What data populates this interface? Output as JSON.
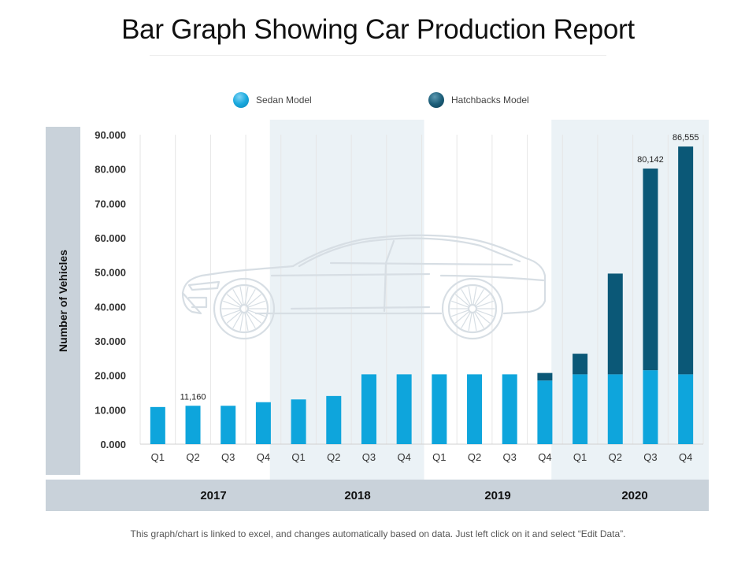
{
  "page": {
    "title": "Bar Graph Showing Car Production Report",
    "footnote": "This graph/chart is linked to excel, and changes automatically based on data. Just left click on it and select “Edit Data”."
  },
  "colors": {
    "sedan": "#0ea5dc",
    "hatchback": "#0b5877",
    "year_shade": "#ebf2f6",
    "band": "#c9d2da",
    "gridline": "#e6e6e6",
    "tick_text": "#333333"
  },
  "chart_data": {
    "type": "bar",
    "stacked": true,
    "title": "Bar Graph Showing Car Production Report",
    "xlabel": "",
    "ylabel": "Number of Vehicles",
    "ylim": [
      0,
      90000
    ],
    "yticks": [
      0,
      10000,
      20000,
      30000,
      40000,
      50000,
      60000,
      70000,
      80000,
      90000
    ],
    "ytick_labels": [
      "0.000",
      "10.000",
      "20.000",
      "30.000",
      "40.000",
      "50.000",
      "60.000",
      "70.000",
      "80.000",
      "90.000"
    ],
    "grid": "vertical",
    "legend_position": "top-center",
    "years": [
      "2017",
      "2018",
      "2019",
      "2020"
    ],
    "shaded_years": [
      "2018",
      "2020"
    ],
    "categories": [
      "Q1",
      "Q2",
      "Q3",
      "Q4",
      "Q1",
      "Q2",
      "Q3",
      "Q4",
      "Q1",
      "Q2",
      "Q3",
      "Q4",
      "Q1",
      "Q2",
      "Q3",
      "Q4"
    ],
    "category_years": [
      "2017",
      "2017",
      "2017",
      "2017",
      "2018",
      "2018",
      "2018",
      "2018",
      "2019",
      "2019",
      "2019",
      "2019",
      "2020",
      "2020",
      "2020",
      "2020"
    ],
    "series": [
      {
        "name": "Sedan Model",
        "values": [
          10800,
          11160,
          11160,
          12200,
          13000,
          14000,
          20300,
          20300,
          20300,
          20300,
          20300,
          18500,
          20300,
          20300,
          21500,
          20300
        ]
      },
      {
        "name": "Hatchbacks Model",
        "values": [
          0,
          0,
          0,
          0,
          0,
          0,
          0,
          0,
          0,
          0,
          0,
          2200,
          6000,
          29300,
          58642,
          66255
        ]
      }
    ],
    "annotations": [
      {
        "index": 1,
        "text": "11,160"
      },
      {
        "index": 14,
        "text": "80,142"
      },
      {
        "index": 15,
        "text": "86,555"
      }
    ]
  }
}
